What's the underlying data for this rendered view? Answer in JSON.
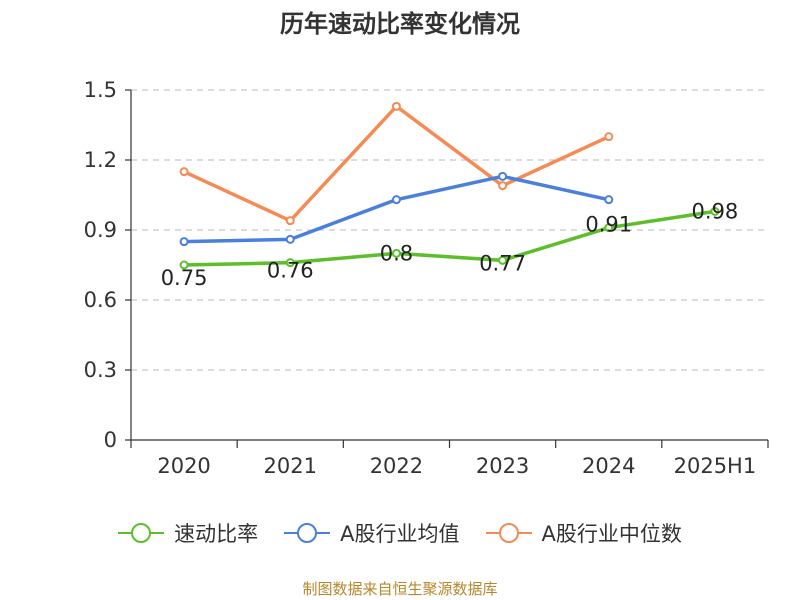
{
  "chart_data": {
    "type": "line",
    "title": "历年速动比率变化情况",
    "categories": [
      "2020",
      "2021",
      "2022",
      "2023",
      "2024",
      "2025H1"
    ],
    "ylim": [
      0,
      1.5
    ],
    "yticks": [
      "0",
      "0.3",
      "0.6",
      "0.9",
      "1.2",
      "1.5"
    ],
    "ytick_values": [
      0,
      0.3,
      0.6,
      0.9,
      1.2,
      1.5
    ],
    "grid": true,
    "legend_position": "bottom",
    "series": [
      {
        "name": "速动比率",
        "color": "#5cbf2a",
        "values": [
          0.75,
          0.76,
          0.8,
          0.77,
          0.91,
          0.98
        ],
        "labels": [
          "0.75",
          "0.76",
          "0.8",
          "0.77",
          "0.91",
          "0.98"
        ]
      },
      {
        "name": "A股行业均值",
        "color": "#4a7fdb",
        "values": [
          0.85,
          0.86,
          1.03,
          1.13,
          1.03,
          null
        ]
      },
      {
        "name": "A股行业中位数",
        "color": "#f58a55",
        "values": [
          1.15,
          0.94,
          1.43,
          1.09,
          1.3,
          null
        ]
      }
    ],
    "source": "制图数据来自恒生聚源数据库"
  }
}
